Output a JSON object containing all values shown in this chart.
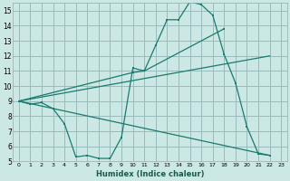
{
  "bg_color": "#cce8e4",
  "grid_color": "#99bbbb",
  "line_color": "#1a7a6e",
  "xlabel": "Humidex (Indice chaleur)",
  "xlim": [
    -0.5,
    23.5
  ],
  "ylim": [
    5,
    15.5
  ],
  "yticks": [
    5,
    6,
    7,
    8,
    9,
    10,
    11,
    12,
    13,
    14,
    15
  ],
  "xticks": [
    0,
    1,
    2,
    3,
    4,
    5,
    6,
    7,
    8,
    9,
    10,
    11,
    12,
    13,
    14,
    15,
    16,
    17,
    18,
    19,
    20,
    21,
    22,
    23
  ],
  "curve1_x": [
    0,
    1,
    2,
    3,
    4,
    5,
    6,
    7,
    8,
    9,
    10,
    11,
    12,
    13,
    14,
    15,
    16,
    17,
    18,
    19,
    20,
    21,
    22
  ],
  "curve1_y": [
    9.0,
    8.8,
    8.9,
    8.5,
    7.5,
    5.3,
    5.4,
    5.2,
    5.2,
    6.6,
    11.2,
    11.0,
    12.7,
    14.4,
    14.4,
    15.6,
    15.4,
    14.7,
    12.1,
    10.2,
    7.3,
    5.5,
    5.4
  ],
  "curve2_x": [
    0,
    10,
    11,
    18
  ],
  "curve2_y": [
    9.0,
    10.9,
    11.0,
    13.8
  ],
  "curve3_x": [
    0,
    22
  ],
  "curve3_y": [
    9.0,
    12.0
  ],
  "curve4_x": [
    0,
    22
  ],
  "curve4_y": [
    9.0,
    5.4
  ]
}
